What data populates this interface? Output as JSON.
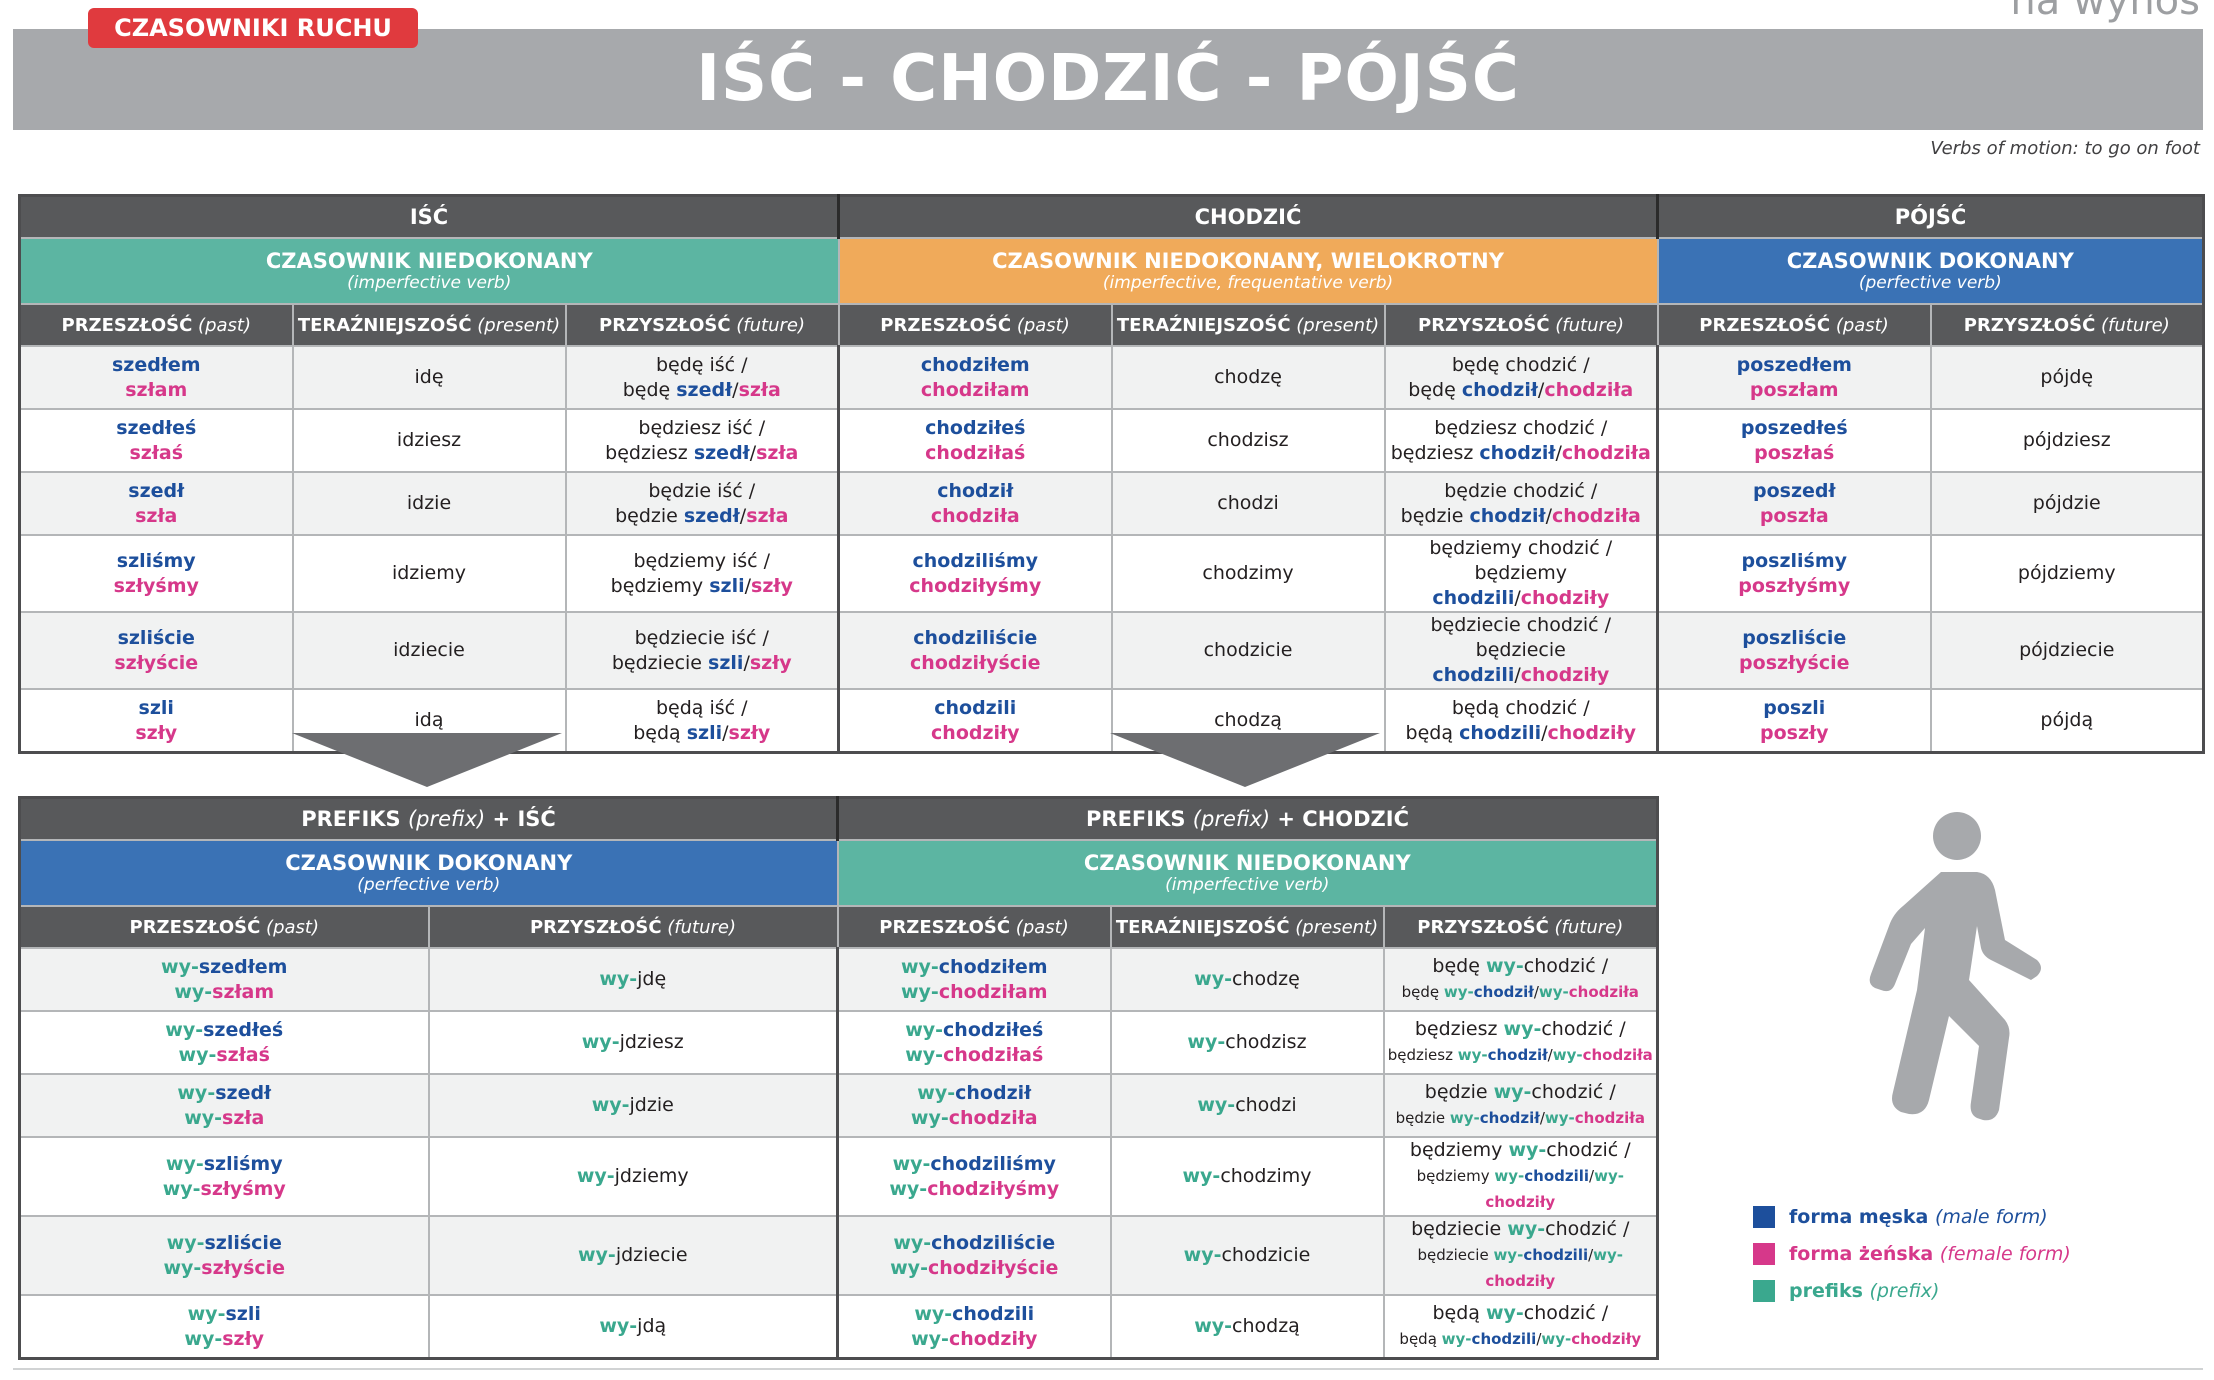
{
  "watermark": "na wynos",
  "tag": "CZASOWNIKI RUCHU",
  "title": "IŚĆ - CHODZIĆ - PÓJŚĆ",
  "subtitle": "Verbs of motion: to go on foot",
  "top": {
    "verbs": {
      "isc": "IŚĆ",
      "chodzic": "CHODZIĆ",
      "pojsc": "PÓJŚĆ"
    },
    "aspects": {
      "isc": {
        "big": "CZASOWNIK NIEDOKONANY",
        "small": "(imperfective verb)"
      },
      "chodzic": {
        "big": "CZASOWNIK NIEDOKONANY, WIELOKROTNY",
        "small": "(imperfective, frequentative verb)"
      },
      "pojsc": {
        "big": "CZASOWNIK DOKONANY",
        "small": "(perfective verb)"
      }
    },
    "tenses": {
      "past": "PRZESZŁOŚĆ",
      "past_en": "(past)",
      "present": "TERAŹNIEJSZOŚĆ",
      "present_en": "(present)",
      "future": "PRZYSZŁOŚĆ",
      "future_en": "(future)"
    },
    "sep": "/",
    "rows": [
      {
        "isc_pm": "szedłem",
        "isc_pf": "szłam",
        "isc_pres": "idę",
        "isc_fut_aux": "będę iść /",
        "isc_fut_aux2": "będę",
        "isc_fut_m": "szedł",
        "isc_fut_f": "szła",
        "ch_pm": "chodziłem",
        "ch_pf": "chodziłam",
        "ch_pres": "chodzę",
        "ch_fut_aux": "będę chodzić /",
        "ch_fut_aux2": "będę",
        "ch_fut_m": "chodził",
        "ch_fut_f": "chodziła",
        "po_pm": "poszedłem",
        "po_pf": "poszłam",
        "po_fut": "pójdę"
      },
      {
        "isc_pm": "szedłeś",
        "isc_pf": "szłaś",
        "isc_pres": "idziesz",
        "isc_fut_aux": "będziesz iść /",
        "isc_fut_aux2": "będziesz",
        "isc_fut_m": "szedł",
        "isc_fut_f": "szła",
        "ch_pm": "chodziłeś",
        "ch_pf": "chodziłaś",
        "ch_pres": "chodzisz",
        "ch_fut_aux": "będziesz chodzić /",
        "ch_fut_aux2": "będziesz",
        "ch_fut_m": "chodził",
        "ch_fut_f": "chodziła",
        "po_pm": "poszedłeś",
        "po_pf": "poszłaś",
        "po_fut": "pójdziesz"
      },
      {
        "isc_pm": "szedł",
        "isc_pf": "szła",
        "isc_pres": "idzie",
        "isc_fut_aux": "będzie iść /",
        "isc_fut_aux2": "będzie",
        "isc_fut_m": "szedł",
        "isc_fut_f": "szła",
        "ch_pm": "chodził",
        "ch_pf": "chodziła",
        "ch_pres": "chodzi",
        "ch_fut_aux": "będzie chodzić /",
        "ch_fut_aux2": "będzie",
        "ch_fut_m": "chodził",
        "ch_fut_f": "chodziła",
        "po_pm": "poszedł",
        "po_pf": "poszła",
        "po_fut": "pójdzie"
      },
      {
        "isc_pm": "szliśmy",
        "isc_pf": "szłyśmy",
        "isc_pres": "idziemy",
        "isc_fut_aux": "będziemy iść /",
        "isc_fut_aux2": "będziemy",
        "isc_fut_m": "szli",
        "isc_fut_f": "szły",
        "ch_pm": "chodziliśmy",
        "ch_pf": "chodziłyśmy",
        "ch_pres": "chodzimy",
        "ch_fut_aux": "będziemy chodzić /",
        "ch_fut_aux2": "będziemy",
        "ch_fut_m": "chodzili",
        "ch_fut_f": "chodziły",
        "po_pm": "poszliśmy",
        "po_pf": "poszłyśmy",
        "po_fut": "pójdziemy"
      },
      {
        "isc_pm": "szliście",
        "isc_pf": "szłyście",
        "isc_pres": "idziecie",
        "isc_fut_aux": "będziecie iść /",
        "isc_fut_aux2": "będziecie",
        "isc_fut_m": "szli",
        "isc_fut_f": "szły",
        "ch_pm": "chodziliście",
        "ch_pf": "chodziłyście",
        "ch_pres": "chodzicie",
        "ch_fut_aux": "będziecie chodzić /",
        "ch_fut_aux2": "będziecie",
        "ch_fut_m": "chodzili",
        "ch_fut_f": "chodziły",
        "po_pm": "poszliście",
        "po_pf": "poszłyście",
        "po_fut": "pójdziecie"
      },
      {
        "isc_pm": "szli",
        "isc_pf": "szły",
        "isc_pres": "idą",
        "isc_fut_aux": "będą iść /",
        "isc_fut_aux2": "będą",
        "isc_fut_m": "szli",
        "isc_fut_f": "szły",
        "ch_pm": "chodzili",
        "ch_pf": "chodziły",
        "ch_pres": "chodzą",
        "ch_fut_aux": "będą chodzić /",
        "ch_fut_aux2": "będą",
        "ch_fut_m": "chodzili",
        "ch_fut_f": "chodziły",
        "po_pm": "poszli",
        "po_pf": "poszły",
        "po_fut": "pójdą"
      }
    ]
  },
  "bottom": {
    "prefix": "wy-",
    "left": {
      "h_a": "PREFIKS",
      "h_b": "(prefix)",
      "h_c": "+ IŚĆ",
      "big": "CZASOWNIK DOKONANY",
      "small": "(perfective verb)"
    },
    "right": {
      "h_a": "PREFIKS",
      "h_b": "(prefix)",
      "h_c": "+ CHODZIĆ",
      "big": "CZASOWNIK NIEDOKONANY",
      "small": "(imperfective verb)"
    },
    "rows": [
      {
        "l_pm": "szedłem",
        "l_pf": "szłam",
        "l_fut": "jdę",
        "r_pm": "chodziłem",
        "r_pf": "chodziłam",
        "r_pres": "chodzę",
        "r_aux": "będę",
        "r_inf": "chodzić /",
        "r_aux2": "będę",
        "r_m": "chodził",
        "r_f": "chodziła"
      },
      {
        "l_pm": "szedłeś",
        "l_pf": "szłaś",
        "l_fut": "jdziesz",
        "r_pm": "chodziłeś",
        "r_pf": "chodziłaś",
        "r_pres": "chodzisz",
        "r_aux": "będziesz",
        "r_inf": "chodzić /",
        "r_aux2": "będziesz",
        "r_m": "chodził",
        "r_f": "chodziła"
      },
      {
        "l_pm": "szedł",
        "l_pf": "szła",
        "l_fut": "jdzie",
        "r_pm": "chodził",
        "r_pf": "chodziła",
        "r_pres": "chodzi",
        "r_aux": "będzie",
        "r_inf": "chodzić /",
        "r_aux2": "będzie",
        "r_m": "chodził",
        "r_f": "chodziła"
      },
      {
        "l_pm": "szliśmy",
        "l_pf": "szłyśmy",
        "l_fut": "jdziemy",
        "r_pm": "chodziliśmy",
        "r_pf": "chodziłyśmy",
        "r_pres": "chodzimy",
        "r_aux": "będziemy",
        "r_inf": "chodzić /",
        "r_aux2": "będziemy",
        "r_m": "chodzili",
        "r_f": "chodziły"
      },
      {
        "l_pm": "szliście",
        "l_pf": "szłyście",
        "l_fut": "jdziecie",
        "r_pm": "chodziliście",
        "r_pf": "chodziłyście",
        "r_pres": "chodzicie",
        "r_aux": "będziecie",
        "r_inf": "chodzić /",
        "r_aux2": "będziecie",
        "r_m": "chodzili",
        "r_f": "chodziły"
      },
      {
        "l_pm": "szli",
        "l_pf": "szły",
        "l_fut": "jdą",
        "r_pm": "chodzili",
        "r_pf": "chodziły",
        "r_pres": "chodzą",
        "r_aux": "będą",
        "r_inf": "chodzić /",
        "r_aux2": "będą",
        "r_m": "chodzili",
        "r_f": "chodziły"
      }
    ]
  },
  "legend": [
    {
      "label": "forma męska",
      "en": "(male form)",
      "color": "#1d4f9c"
    },
    {
      "label": "forma żeńska",
      "en": "(female form)",
      "color": "#d6388a"
    },
    {
      "label": "prefiks",
      "en": "(prefix)",
      "color": "#3aa88e"
    }
  ],
  "icon": "walking-person-icon"
}
